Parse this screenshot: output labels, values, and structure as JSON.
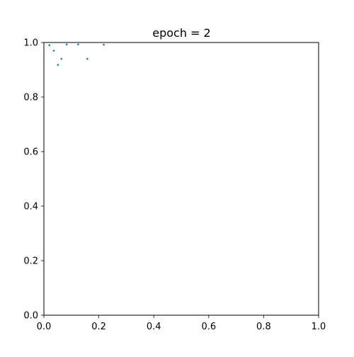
{
  "chart_data": {
    "type": "scatter",
    "title": "epoch = 2",
    "xlabel": "",
    "ylabel": "",
    "xlim": [
      0.0,
      1.0
    ],
    "ylim": [
      0.0,
      1.0
    ],
    "xticks": [
      "0.0",
      "0.2",
      "0.4",
      "0.6",
      "0.8",
      "1.0"
    ],
    "yticks": [
      "0.0",
      "0.2",
      "0.4",
      "0.6",
      "0.8",
      "1.0"
    ],
    "grid": false,
    "legend": false,
    "series": [
      {
        "color": "#1f77b4",
        "points": [
          {
            "x": 0.02,
            "y": 0.99
          },
          {
            "x": 0.036,
            "y": 0.97
          },
          {
            "x": 0.051,
            "y": 0.918
          },
          {
            "x": 0.064,
            "y": 0.94
          },
          {
            "x": 0.083,
            "y": 0.993
          },
          {
            "x": 0.125,
            "y": 0.993
          },
          {
            "x": 0.158,
            "y": 0.94
          },
          {
            "x": 0.218,
            "y": 0.992
          }
        ]
      }
    ]
  }
}
